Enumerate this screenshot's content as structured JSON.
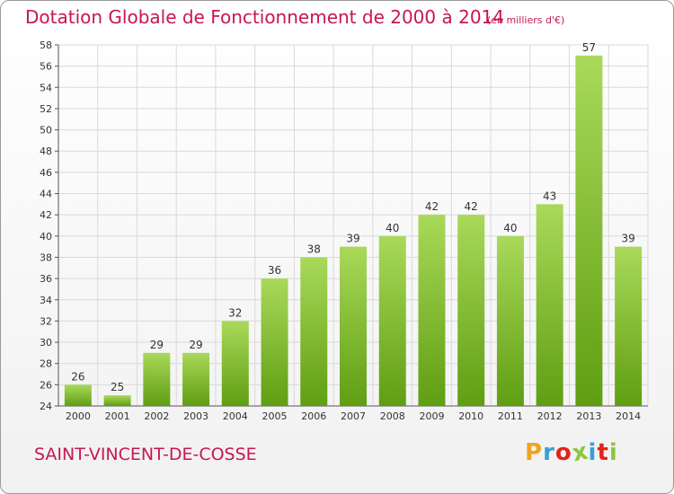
{
  "header": {
    "title": "Dotation Globale de Fonctionnement de 2000 à 2014",
    "subtitle": "(en milliers d'€)"
  },
  "footer": {
    "commune": "SAINT-VINCENT-DE-COSSE",
    "logo_text": "Proxiti",
    "logo_colors": [
      "#f0a31d",
      "#3a9fd6",
      "#e2231a",
      "#8dc63f",
      "#3a9fd6",
      "#e2231a",
      "#8dc63f"
    ]
  },
  "colors": {
    "title": "#c8174f",
    "bar_top": "#a9d95a",
    "bar_bottom": "#5f9e12",
    "grid": "#d9d9d9",
    "axis": "#555555"
  },
  "chart_data": {
    "type": "bar",
    "categories": [
      "2000",
      "2001",
      "2002",
      "2003",
      "2004",
      "2005",
      "2006",
      "2007",
      "2008",
      "2009",
      "2010",
      "2011",
      "2012",
      "2013",
      "2014"
    ],
    "values": [
      26,
      25,
      29,
      29,
      32,
      36,
      38,
      39,
      40,
      42,
      42,
      40,
      43,
      57,
      39
    ],
    "ylim": [
      24,
      58
    ],
    "yticks": [
      24,
      26,
      28,
      30,
      32,
      34,
      36,
      38,
      40,
      42,
      44,
      46,
      48,
      50,
      52,
      54,
      56,
      58
    ],
    "grid": true,
    "xlabel": "",
    "ylabel": ""
  }
}
